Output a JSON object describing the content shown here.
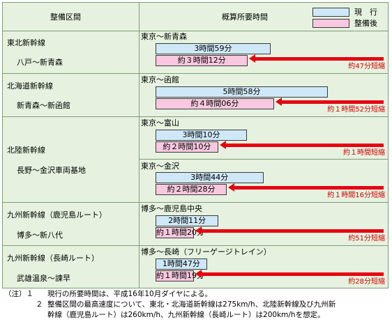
{
  "header": {
    "col1": "整備区間",
    "col2": "概算所要時間"
  },
  "legend": {
    "current": "現　行",
    "after": "整備後"
  },
  "colors": {
    "current_bar": "#cfe8f8",
    "after_bar": "#f8c8e0",
    "arrow": "#e60012",
    "section_bg": "#e6f2df"
  },
  "chart_data": {
    "type": "bar",
    "series": [
      {
        "name": "現　行",
        "values": [
          "3時間59分",
          "5時間58分",
          "3時間10分",
          "3時間44分",
          "2時間11分",
          "1時間47分"
        ]
      },
      {
        "name": "整備後",
        "values": [
          "約３時間12分",
          "約４時間06分",
          "約２時間10分",
          "約２時間28分",
          "約１時間20分",
          "約１時間19分"
        ]
      }
    ],
    "minutes_current": [
      239,
      358,
      190,
      224,
      131,
      107
    ],
    "minutes_after": [
      192,
      246,
      130,
      148,
      80,
      79
    ],
    "savings": [
      "約47分短縮",
      "約１時間52分短縮",
      "約１時間短縮",
      "約１時間16分短縮",
      "約51分短縮",
      "約28分短縮"
    ]
  },
  "sections": [
    {
      "line": "東北新幹線",
      "segment": "八戸～新青森",
      "routes": [
        {
          "route": "東京～新青森",
          "current": "3時間59分",
          "after": "約３時間12分",
          "saving": "約47分短縮"
        }
      ]
    },
    {
      "line": "北海道新幹線",
      "segment": "新青森～新函館",
      "routes": [
        {
          "route": "東京～函館",
          "current": "5時間58分",
          "after": "約４時間06分",
          "saving": "約１時間52分短縮"
        }
      ]
    },
    {
      "line": "北陸新幹線",
      "segment": "長野～金沢車両基地",
      "routes": [
        {
          "route": "東京～富山",
          "current": "3時間10分",
          "after": "約２時間10分",
          "saving": "約１時間短縮"
        },
        {
          "route": "東京～金沢",
          "current": "3時間44分",
          "after": "約２時間28分",
          "saving": "約１時間16分短縮"
        }
      ]
    },
    {
      "line": "九州新幹線（鹿児島ルート）",
      "segment": "博多～新八代",
      "routes": [
        {
          "route": "博多～鹿児島中央",
          "current": "2時間11分",
          "after": "約１時間20分",
          "saving": "約51分短縮"
        }
      ]
    },
    {
      "line": "九州新幹線（長崎ルート）",
      "segment": "武雄温泉～諫早",
      "routes": [
        {
          "route": "博多～長崎（フリーゲージトレイン）",
          "current": "1時間47分",
          "after": "約１時間19分",
          "saving": "約28分短縮"
        }
      ]
    }
  ],
  "notes": [
    {
      "mark": "（注）１",
      "text": "現行の所要時間は、平成16年10月ダイヤによる。"
    },
    {
      "mark": "２",
      "text": "整備区間の最高速度について、東北・北海道新幹線は275km/h、北陸新幹線及び九州新"
    },
    {
      "mark": "",
      "text": "幹線（鹿児島ルート）は260km/h、九州新幹線（長崎ルート）は200km/hを想定。"
    }
  ]
}
